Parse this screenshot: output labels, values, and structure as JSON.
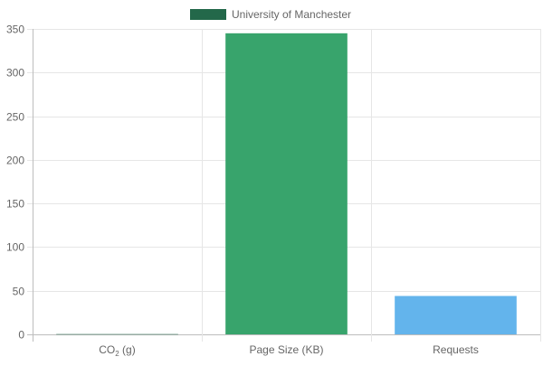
{
  "chart_data": {
    "type": "bar",
    "legend": {
      "placement": "top-center",
      "entries": [
        {
          "label": "University of Manchester",
          "color": "#23684a"
        }
      ]
    },
    "categories": [
      {
        "label": "CO",
        "subscript": "2",
        "suffix": " (g)"
      },
      {
        "label": "Page Size (KB)"
      },
      {
        "label": "Requests"
      }
    ],
    "series": [
      {
        "name": "University of Manchester",
        "values": [
          0.3,
          345,
          44
        ],
        "colors": [
          "#23684a",
          "#38a46c",
          "#63b4ec"
        ]
      }
    ],
    "ylim": [
      0,
      350
    ],
    "yticks": [
      0,
      50,
      100,
      150,
      200,
      250,
      300,
      350
    ],
    "grid": true
  }
}
